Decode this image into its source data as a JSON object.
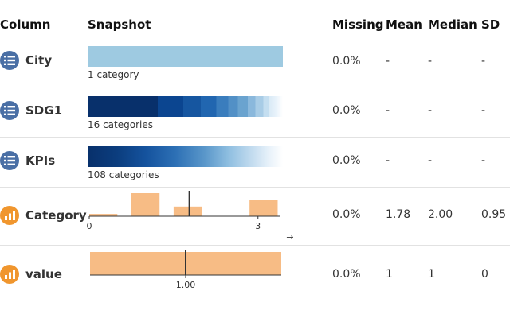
{
  "headers": {
    "column": "Column",
    "snapshot": "Snapshot",
    "missing": "Missing",
    "mean": "Mean",
    "median": "Median",
    "sd": "SD"
  },
  "colors": {
    "categorical_icon": "#4a6fa5",
    "numeric_icon": "#f0962e",
    "histogram_bar": "#f7bc85",
    "city_bar": "#9ecae1"
  },
  "rows": [
    {
      "name": "City",
      "icon": "list-icon",
      "snapshot_label": "1 category",
      "missing": "0.0%",
      "mean": "-",
      "median": "-",
      "sd": "-"
    },
    {
      "name": "SDG1",
      "icon": "list-icon",
      "snapshot_label": "16 categories",
      "missing": "0.0%",
      "mean": "-",
      "median": "-",
      "sd": "-"
    },
    {
      "name": "KPIs",
      "icon": "list-icon",
      "snapshot_label": "108 categories",
      "missing": "0.0%",
      "mean": "-",
      "median": "-",
      "sd": "-"
    },
    {
      "name": "Category",
      "icon": "bar-chart-icon",
      "missing": "0.0%",
      "mean": "1.78",
      "median": "2.00",
      "sd": "0.95"
    },
    {
      "name": "value",
      "icon": "bar-chart-icon",
      "missing": "0.0%",
      "mean": "1",
      "median": "1",
      "sd": "0"
    }
  ],
  "chart_data": [
    {
      "type": "bar",
      "title": "Category",
      "x_ticks": [
        "0",
        "3"
      ],
      "bins": [
        {
          "x0": 0,
          "x1": 0.5,
          "value": 0.1
        },
        {
          "x0": 0.75,
          "x1": 1.25,
          "value": 1.0
        },
        {
          "x0": 1.5,
          "x1": 2.0,
          "value": 0.42
        },
        {
          "x0": 2.25,
          "x1": 2.75,
          "value": 0
        },
        {
          "x0": 2.85,
          "x1": 3.35,
          "value": 0.72
        }
      ],
      "xlim": [
        0,
        3.4
      ],
      "mean": 1.78,
      "arrow_label": "→"
    },
    {
      "type": "bar",
      "title": "value",
      "x_ticks": [
        "1.00"
      ],
      "bins": [
        {
          "x0": 0.5,
          "x1": 1.5,
          "value": 1
        }
      ],
      "xlim": [
        0.5,
        1.5
      ],
      "mean": 1.0
    }
  ]
}
